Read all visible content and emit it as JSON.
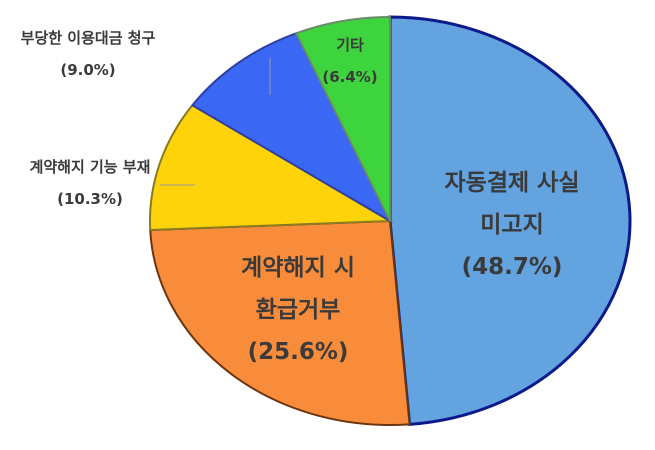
{
  "chart_data": {
    "type": "pie",
    "start": "12 o'clock",
    "direction": "clockwise",
    "slices": [
      {
        "label": [
          "자동결제 사실",
          "미고지"
        ],
        "pct": "(48.7%)",
        "value": 48.7,
        "color": "#62a3e0",
        "stroke": "#0a1a8a",
        "label_position": "inside"
      },
      {
        "label": [
          "계약해지 시",
          "환급거부"
        ],
        "pct": "(25.6%)",
        "value": 25.6,
        "color": "#f98c3a",
        "stroke": "#6b3510",
        "label_position": "inside"
      },
      {
        "label": [
          "계약해지 기능 부재"
        ],
        "pct": "(10.3%)",
        "value": 10.3,
        "color": "#ffd30a",
        "stroke": "#8a7a20",
        "label_position": "outside"
      },
      {
        "label": [
          "부당한 이용대금 청구"
        ],
        "pct": "(9.0%)",
        "value": 9.0,
        "color": "#3b67f5",
        "stroke": "#3040a0",
        "label_position": "outside"
      },
      {
        "label": [
          "기타"
        ],
        "pct": "(6.4%)",
        "value": 6.4,
        "color": "#3ed43e",
        "stroke": "#6a8a6a",
        "label_position": "inside"
      }
    ]
  }
}
